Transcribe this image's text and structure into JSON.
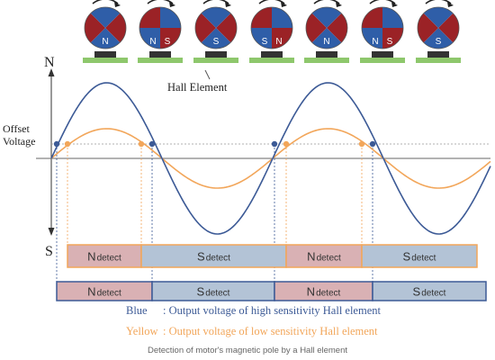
{
  "axis": {
    "north_label": "N",
    "south_label": "S"
  },
  "offset_label": {
    "line1": "Offset",
    "line2": "Voltage"
  },
  "hall_element_label": "Hall Element",
  "rotors": [
    {
      "letters": [
        "N"
      ]
    },
    {
      "letters": [
        "N",
        "S"
      ]
    },
    {
      "letters": [
        "S"
      ]
    },
    {
      "letters": [
        "S",
        "N"
      ]
    },
    {
      "letters": [
        "N"
      ]
    },
    {
      "letters": [
        "N",
        "S"
      ]
    },
    {
      "letters": [
        "S"
      ]
    }
  ],
  "detect_rows": {
    "low_sensitivity": [
      {
        "pole": "N",
        "suffix": "detect"
      },
      {
        "pole": "S",
        "suffix": "detect"
      },
      {
        "pole": "N",
        "suffix": "detect"
      },
      {
        "pole": "S",
        "suffix": "detect"
      }
    ],
    "high_sensitivity": [
      {
        "pole": "N",
        "suffix": "detect"
      },
      {
        "pole": "S",
        "suffix": "detect"
      },
      {
        "pole": "N",
        "suffix": "detect"
      },
      {
        "pole": "S",
        "suffix": "detect"
      }
    ]
  },
  "legend": {
    "blue_name": "Blue",
    "blue_text": ": Output voltage of high sensitivity Hall element",
    "yellow_name": "Yellow",
    "yellow_text": ": Output voltage of low sensitivity Hall element"
  },
  "caption": "Detection of motor's magnetic pole by a Hall element",
  "colors": {
    "blue_curve": "#3c5a96",
    "orange_curve": "#f2a65a",
    "rotor_red": "#9b2226",
    "rotor_blue": "#2f5ea8",
    "n_detect_fill": "#d9b1b4",
    "s_detect_fill": "#b3c3d6",
    "detect_border_low": "#f2a65a",
    "detect_border_high": "#3c5a96",
    "mount_green": "#8ec76c"
  }
}
